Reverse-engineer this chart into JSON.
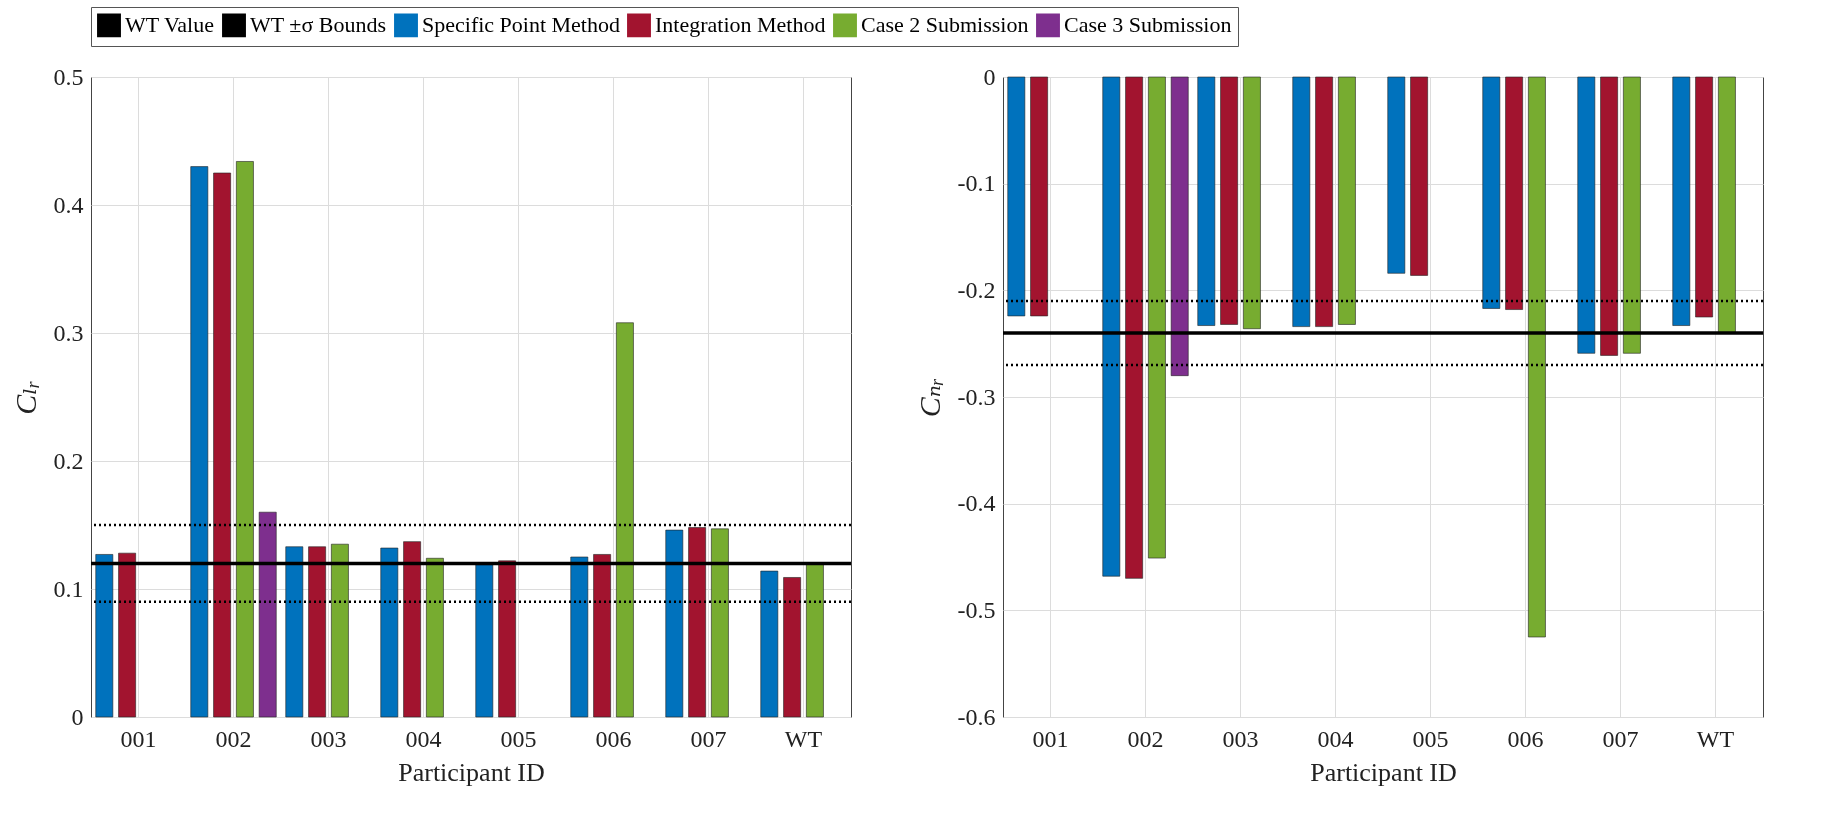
{
  "chart_data": [
    {
      "type": "bar",
      "categories": [
        "001",
        "002",
        "003",
        "004",
        "005",
        "006",
        "007",
        "WT"
      ],
      "xlabel": "Participant ID",
      "ylabel": "Cₗᵣ",
      "ylim": [
        0,
        0.5
      ],
      "yticks": [
        0,
        0.1,
        0.2,
        0.3,
        0.4,
        0.5
      ],
      "grid": true,
      "legend": "top",
      "series": [
        {
          "name": "Specific Point Method",
          "color": "#0072bd",
          "values": [
            0.127,
            0.43,
            0.133,
            0.132,
            0.119,
            0.125,
            0.146,
            0.114
          ]
        },
        {
          "name": "Integration Method",
          "color": "#a2142f",
          "values": [
            0.128,
            0.425,
            0.133,
            0.137,
            0.122,
            0.127,
            0.148,
            0.109
          ]
        },
        {
          "name": "Case 2 Submission",
          "color": "#77ac30",
          "values": [
            null,
            0.434,
            0.135,
            0.124,
            null,
            0.308,
            0.147,
            0.12
          ]
        },
        {
          "name": "Case 3 Submission",
          "color": "#7e2f8e",
          "values": [
            null,
            0.16,
            null,
            null,
            null,
            null,
            null,
            null
          ]
        }
      ],
      "ref_lines": [
        {
          "axis": "y",
          "value": 0.12,
          "label": "WT Value",
          "color": "#000000",
          "line_style": "solid"
        },
        {
          "axis": "y",
          "value": 0.15,
          "label": "WT ±σ Bounds",
          "color": "#000000",
          "line_style": "dotted"
        },
        {
          "axis": "y",
          "value": 0.09,
          "color": "#000000",
          "line_style": "dotted"
        }
      ]
    },
    {
      "type": "bar",
      "categories": [
        "001",
        "002",
        "003",
        "004",
        "005",
        "006",
        "007",
        "WT"
      ],
      "xlabel": "Participant ID",
      "ylabel": "Cₙᵣ",
      "ylim": [
        -0.6,
        0
      ],
      "yticks": [
        -0.6,
        -0.5,
        -0.4,
        -0.3,
        -0.2,
        -0.1,
        0
      ],
      "grid": true,
      "legend": "top",
      "series": [
        {
          "name": "Specific Point Method",
          "color": "#0072bd",
          "values": [
            -0.224,
            -0.468,
            -0.233,
            -0.234,
            -0.184,
            -0.217,
            -0.259,
            -0.233
          ]
        },
        {
          "name": "Integration Method",
          "color": "#a2142f",
          "values": [
            -0.224,
            -0.47,
            -0.232,
            -0.234,
            -0.186,
            -0.218,
            -0.261,
            -0.225
          ]
        },
        {
          "name": "Case 2 Submission",
          "color": "#77ac30",
          "values": [
            null,
            -0.451,
            -0.236,
            -0.232,
            null,
            -0.525,
            -0.259,
            -0.24
          ]
        },
        {
          "name": "Case 3 Submission",
          "color": "#7e2f8e",
          "values": [
            null,
            -0.28,
            null,
            null,
            null,
            null,
            null,
            null
          ]
        }
      ],
      "ref_lines": [
        {
          "axis": "y",
          "value": -0.24,
          "color": "#000000",
          "line_style": "solid"
        },
        {
          "axis": "y",
          "value": -0.21,
          "color": "#000000",
          "line_style": "dotted"
        },
        {
          "axis": "y",
          "value": -0.27,
          "color": "#000000",
          "line_style": "dotted"
        }
      ]
    }
  ]
}
